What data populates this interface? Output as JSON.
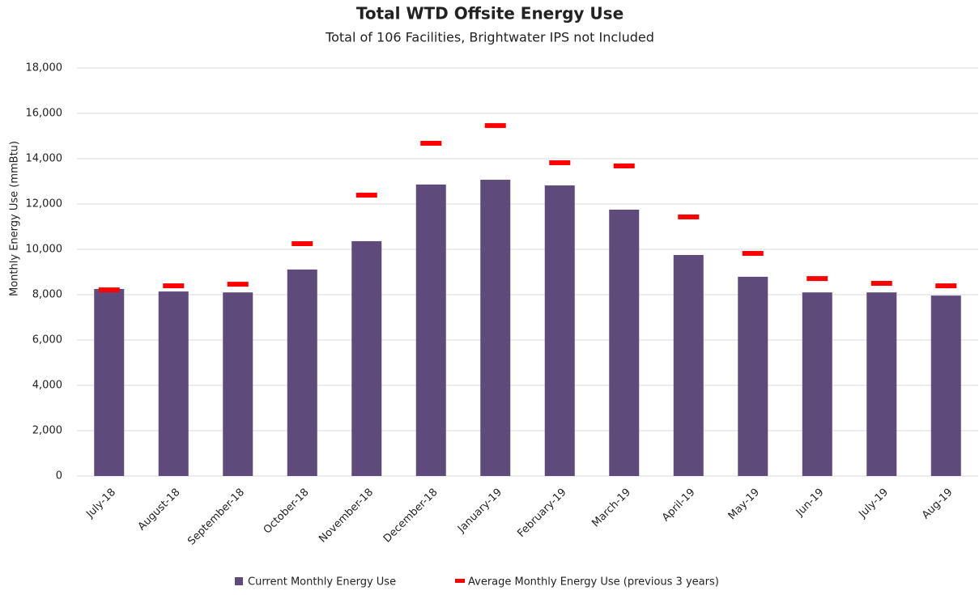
{
  "chart_data": {
    "type": "bar",
    "title": "Total WTD Offsite Energy Use",
    "subtitle": "Total of 106 Facilities, Brightwater IPS not Included",
    "y_label": "Monthly Energy Use (mmBtu)",
    "categories": [
      "July-18",
      "August-18",
      "September-18",
      "October-18",
      "November-18",
      "December-18",
      "January-19",
      "February-19",
      "March-19",
      "April-19",
      "May-19",
      "Jun-19",
      "July-19",
      "Aug-19"
    ],
    "series": [
      {
        "name": "Current Monthly Energy Use",
        "color": "#5e4b7c",
        "type": "bar",
        "values": [
          8250,
          8140,
          8100,
          9110,
          10360,
          12860,
          13070,
          12820,
          11750,
          9750,
          8790,
          8100,
          8100,
          7960
        ]
      },
      {
        "name": "Average Monthly Energy Use (previous 3 years)",
        "color": "#ff0000",
        "type": "dash",
        "values": [
          8210,
          8390,
          8460,
          10250,
          12390,
          14680,
          15460,
          13820,
          13680,
          11430,
          9820,
          8710,
          8500,
          8390
        ]
      }
    ],
    "ylim": [
      0,
      18000
    ],
    "yticks": [
      0,
      {
        "value": 2000,
        "label": "2,000"
      },
      {
        "value": 4000,
        "label": "4,000"
      },
      {
        "value": 6000,
        "label": "6,000"
      },
      {
        "value": 8000,
        "label": "8,000"
      },
      {
        "value": 10000,
        "label": "10,000"
      },
      {
        "value": 12000,
        "label": "12,000"
      },
      {
        "value": 14000,
        "label": "14,000"
      },
      {
        "value": 16000,
        "label": "16,000"
      },
      {
        "value": 18000,
        "label": "18,000"
      }
    ],
    "grid": true,
    "legend": "bottom"
  }
}
